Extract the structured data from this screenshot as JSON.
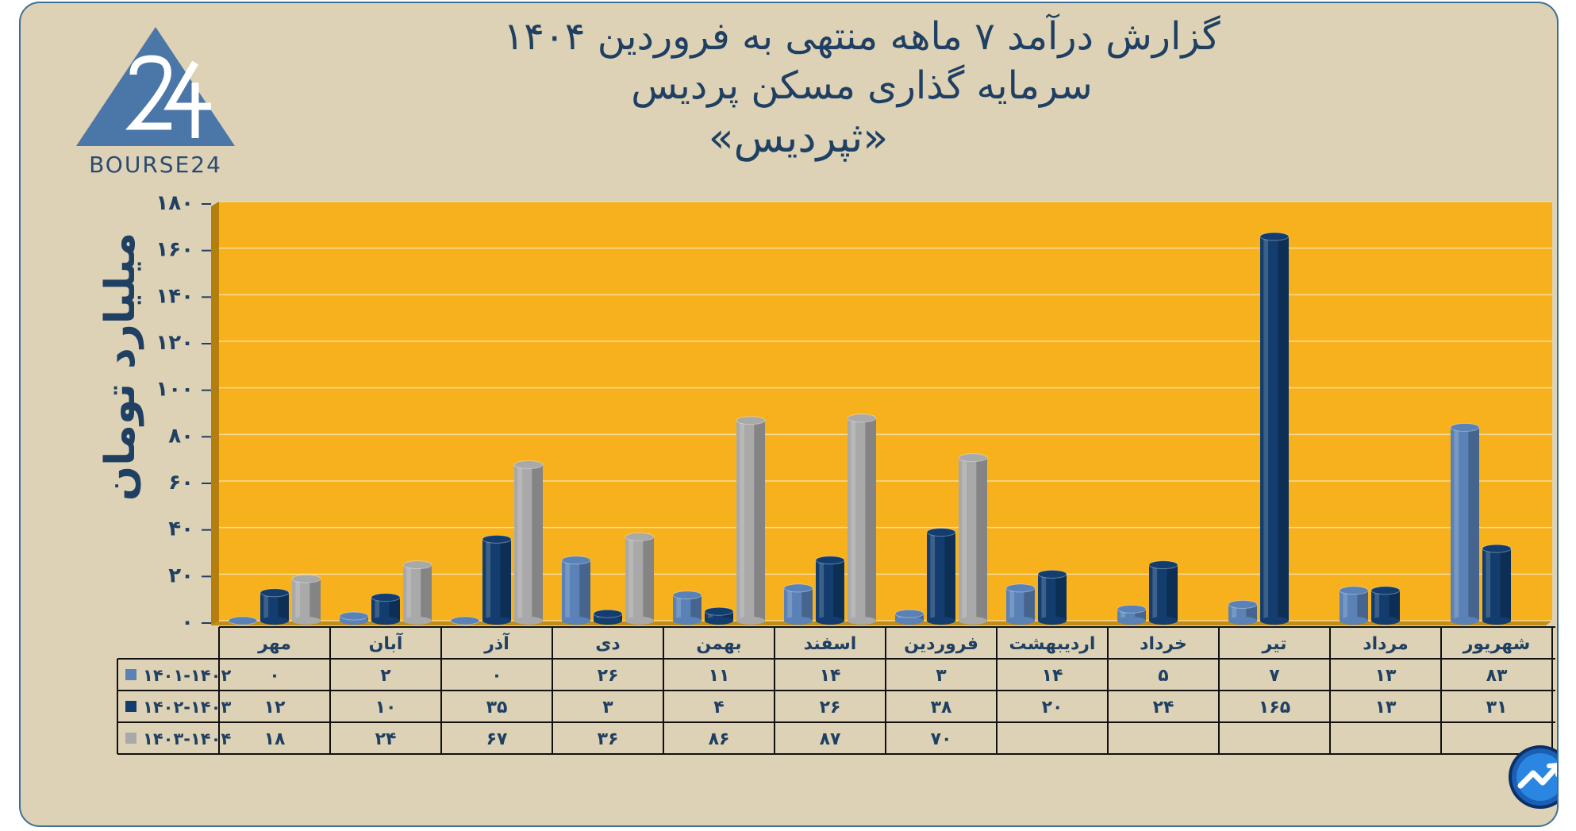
{
  "title": {
    "line1": "گزارش  درآمد ۷ ماهه منتهی به فروردین ۱۴۰۴",
    "line2": "سرمایه گذاری مسکن پردیس",
    "line3": "«ثپردیس»"
  },
  "logo_text": "BOURSE24",
  "chart_data": {
    "type": "bar",
    "ylabel": "میلیارد تومان",
    "ylim": [
      0,
      180
    ],
    "yticks": [
      "۰",
      "۲۰",
      "۴۰",
      "۶۰",
      "۸۰",
      "۱۰۰",
      "۱۲۰",
      "۱۴۰",
      "۱۶۰",
      "۱۸۰"
    ],
    "grid": true,
    "categories": [
      "مهر",
      "آبان",
      "آذر",
      "دی",
      "بهمن",
      "اسفند",
      "فروردین",
      "اردیبهشت",
      "خرداد",
      "تیر",
      "مرداد",
      "شهریور"
    ],
    "series": [
      {
        "name": "۱۴۰۱-۱۴۰۲",
        "color": "#5a82b6",
        "values": [
          0,
          2,
          0,
          26,
          11,
          14,
          3,
          14,
          5,
          7,
          13,
          83
        ],
        "labels": [
          "۰",
          "۲",
          "۰",
          "۲۶",
          "۱۱",
          "۱۴",
          "۳",
          "۱۴",
          "۵",
          "۷",
          "۱۳",
          "۸۳"
        ]
      },
      {
        "name": "۱۴۰۲-۱۴۰۳",
        "color": "#123d6e",
        "values": [
          12,
          10,
          35,
          3,
          4,
          26,
          38,
          20,
          24,
          165,
          13,
          31
        ],
        "labels": [
          "۱۲",
          "۱۰",
          "۳۵",
          "۳",
          "۴",
          "۲۶",
          "۳۸",
          "۲۰",
          "۲۴",
          "۱۶۵",
          "۱۳",
          "۳۱"
        ]
      },
      {
        "name": "۱۴۰۳-۱۴۰۴",
        "color": "#a9a9a9",
        "values": [
          18,
          24,
          67,
          36,
          86,
          87,
          70,
          null,
          null,
          null,
          null,
          null
        ],
        "labels": [
          "۱۸",
          "۲۴",
          "۶۷",
          "۳۶",
          "۸۶",
          "۸۷",
          "۷۰",
          "",
          "",
          "",
          "",
          ""
        ]
      }
    ]
  },
  "colors": {
    "plot_bg": "#f7b11d",
    "frame_bg": "#ddd2b5",
    "accent": "#1f3f63"
  },
  "icons": {
    "badge": "bourse24-chart-trend-icon"
  }
}
